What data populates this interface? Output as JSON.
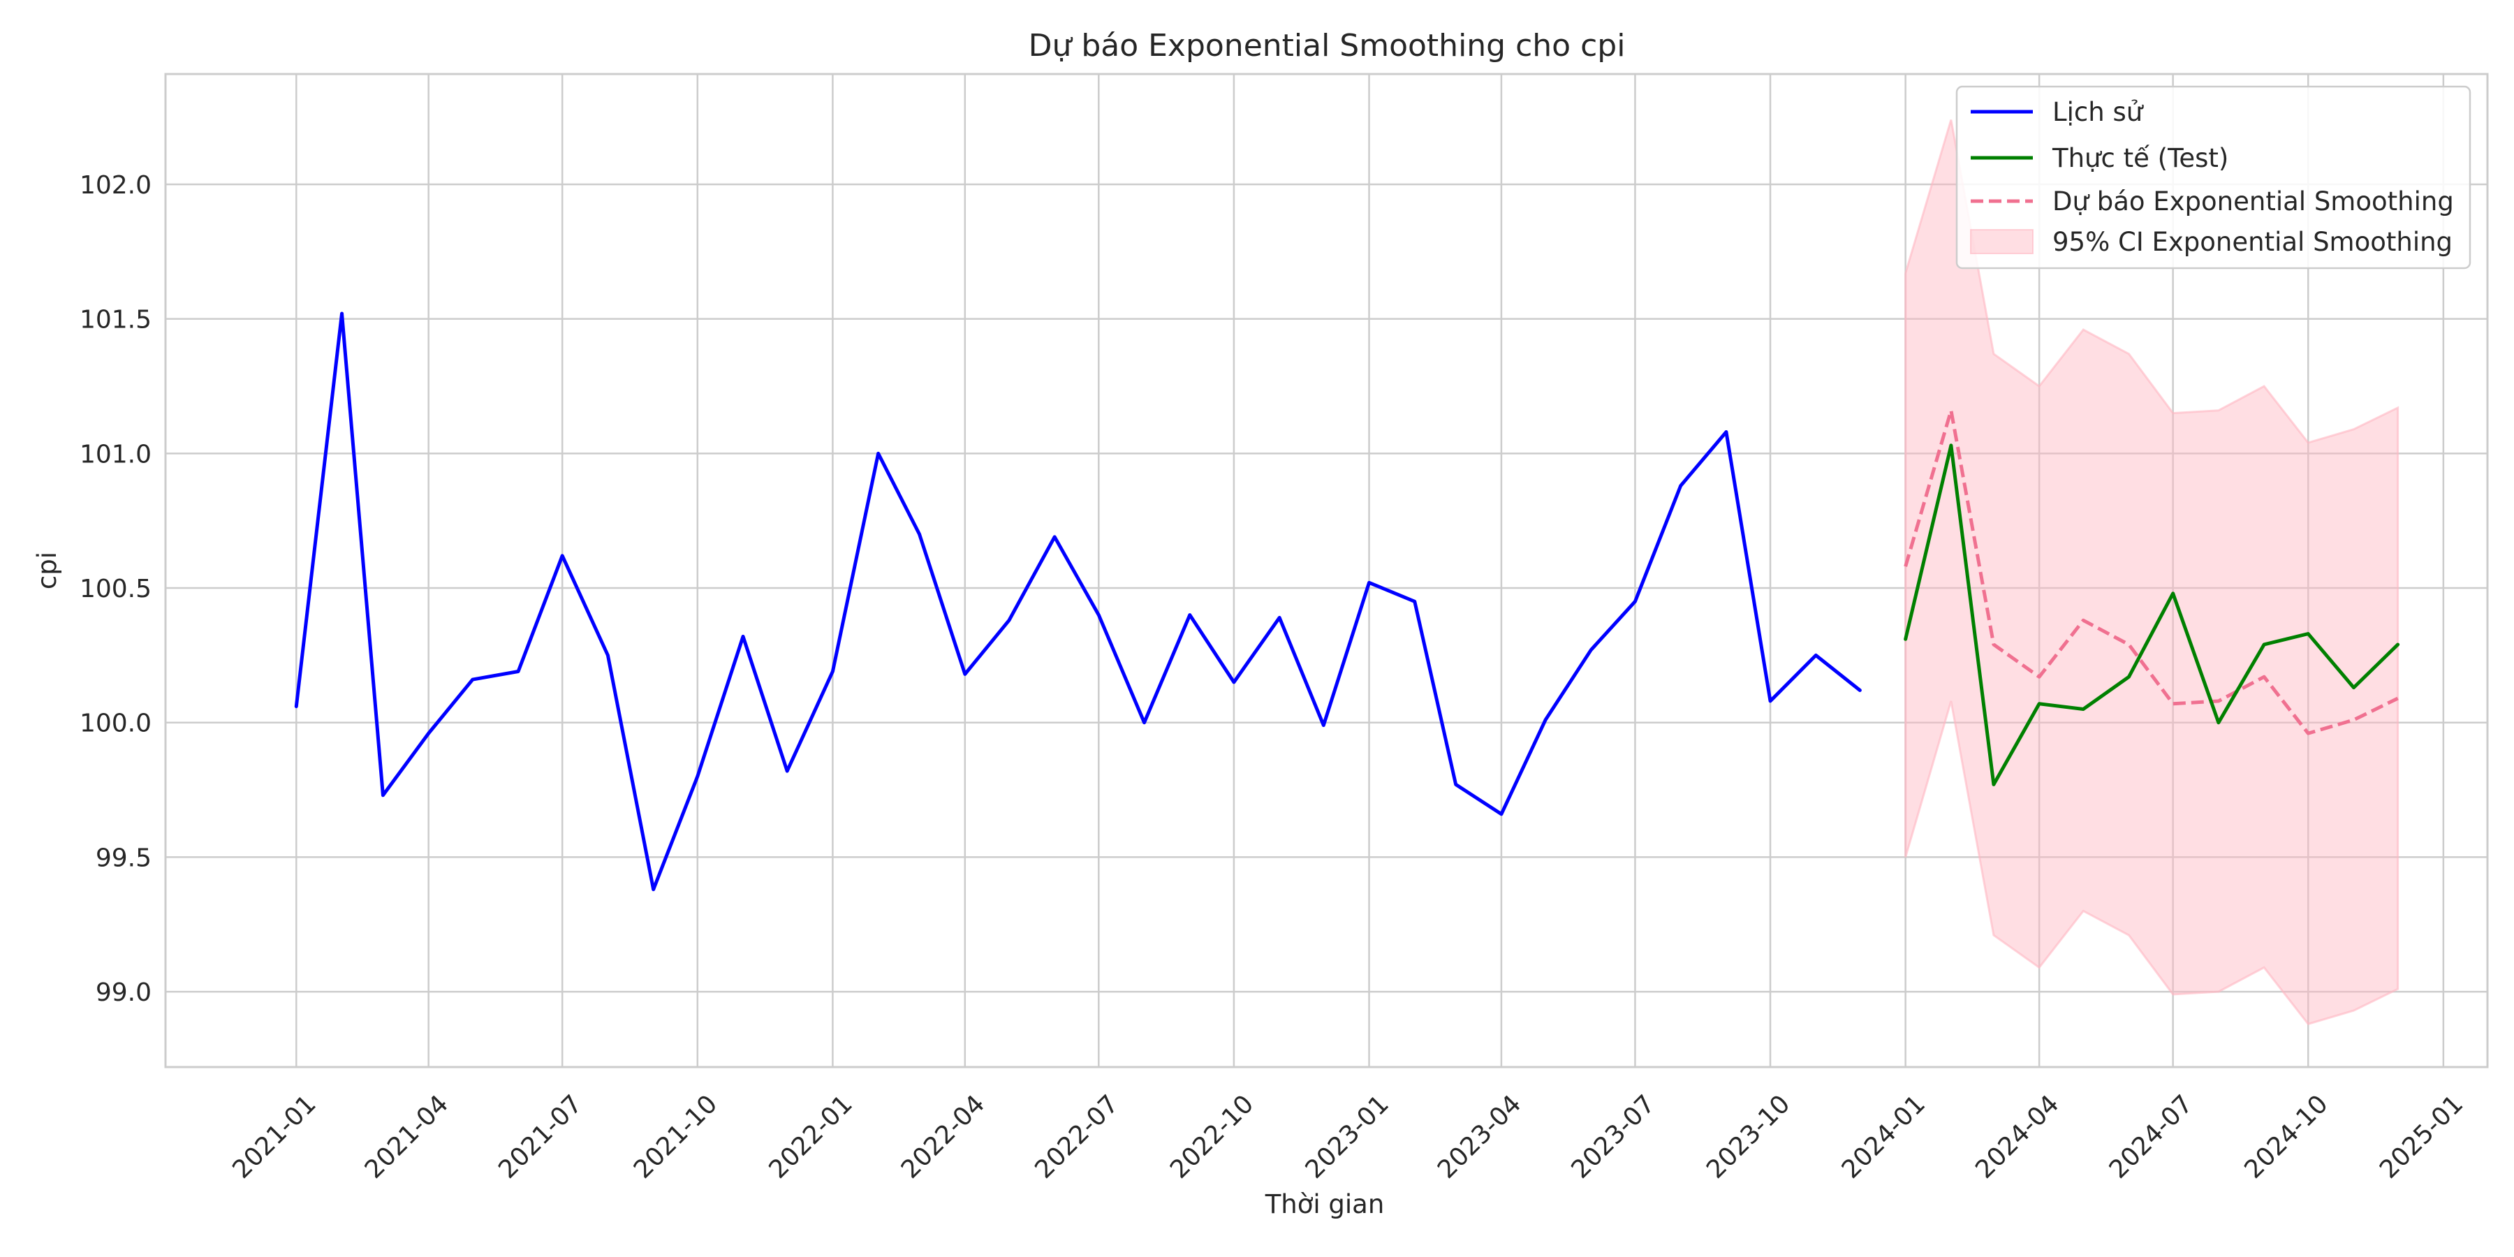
{
  "chart_data": {
    "type": "line",
    "title": "Dự báo Exponential Smoothing cho cpi",
    "xlabel": "Thời gian",
    "ylabel": "cpi",
    "ylim": [
      98.72,
      102.41
    ],
    "xlim": [
      "2020-10-04",
      "2025-01-31"
    ],
    "grid": true,
    "legend_position": "top-right",
    "x_ticks": [
      "2021-01",
      "2021-04",
      "2021-07",
      "2021-10",
      "2022-01",
      "2022-04",
      "2022-07",
      "2022-10",
      "2023-01",
      "2023-04",
      "2023-07",
      "2023-10",
      "2024-01",
      "2024-04",
      "2024-07",
      "2024-10",
      "2025-01"
    ],
    "y_ticks": [
      "99.0",
      "99.5",
      "100.0",
      "100.5",
      "101.0",
      "101.5",
      "102.0"
    ],
    "series": [
      {
        "name": "Lịch sử",
        "color": "#0000ff",
        "style": "solid",
        "x": [
          "2021-01",
          "2021-02",
          "2021-03",
          "2021-04",
          "2021-05",
          "2021-06",
          "2021-07",
          "2021-08",
          "2021-09",
          "2021-10",
          "2021-11",
          "2021-12",
          "2022-01",
          "2022-02",
          "2022-03",
          "2022-04",
          "2022-05",
          "2022-06",
          "2022-07",
          "2022-08",
          "2022-09",
          "2022-10",
          "2022-11",
          "2022-12",
          "2023-01",
          "2023-02",
          "2023-03",
          "2023-04",
          "2023-05",
          "2023-06",
          "2023-07",
          "2023-08",
          "2023-09",
          "2023-10",
          "2023-11",
          "2023-12"
        ],
        "values": [
          100.06,
          101.52,
          99.73,
          99.96,
          100.16,
          100.19,
          100.62,
          100.25,
          99.38,
          99.8,
          100.32,
          99.82,
          100.19,
          101.0,
          100.7,
          100.18,
          100.38,
          100.69,
          100.4,
          100.0,
          100.4,
          100.15,
          100.39,
          99.99,
          100.52,
          100.45,
          99.77,
          99.66,
          100.01,
          100.27,
          100.45,
          100.88,
          101.08,
          100.08,
          100.25,
          100.12
        ]
      },
      {
        "name": "Thực tế (Test)",
        "color": "#008000",
        "style": "solid",
        "x": [
          "2024-01",
          "2024-02",
          "2024-03",
          "2024-04",
          "2024-05",
          "2024-06",
          "2024-07",
          "2024-08",
          "2024-09",
          "2024-10",
          "2024-11",
          "2024-12"
        ],
        "values": [
          100.31,
          101.03,
          99.77,
          100.07,
          100.05,
          100.17,
          100.48,
          100.0,
          100.29,
          100.33,
          100.13,
          100.29
        ]
      },
      {
        "name": "Dự báo Exponential Smoothing",
        "color": "#f07090",
        "style": "dashed",
        "x": [
          "2024-01",
          "2024-02",
          "2024-03",
          "2024-04",
          "2024-05",
          "2024-06",
          "2024-07",
          "2024-08",
          "2024-09",
          "2024-10",
          "2024-11",
          "2024-12"
        ],
        "values": [
          100.58,
          101.16,
          100.29,
          100.17,
          100.38,
          100.29,
          100.07,
          100.08,
          100.17,
          99.96,
          100.01,
          100.09
        ]
      }
    ],
    "band": {
      "name": "95% CI Exponential Smoothing",
      "color": "#ffb6c1",
      "x": [
        "2024-01",
        "2024-02",
        "2024-03",
        "2024-04",
        "2024-05",
        "2024-06",
        "2024-07",
        "2024-08",
        "2024-09",
        "2024-10",
        "2024-11",
        "2024-12"
      ],
      "lower": [
        99.5,
        100.08,
        99.21,
        99.09,
        99.3,
        99.21,
        98.99,
        99.0,
        99.09,
        98.88,
        98.93,
        99.01
      ],
      "upper": [
        101.67,
        102.24,
        101.37,
        101.25,
        101.46,
        101.37,
        101.15,
        101.16,
        101.25,
        101.04,
        101.09,
        101.17
      ]
    }
  }
}
